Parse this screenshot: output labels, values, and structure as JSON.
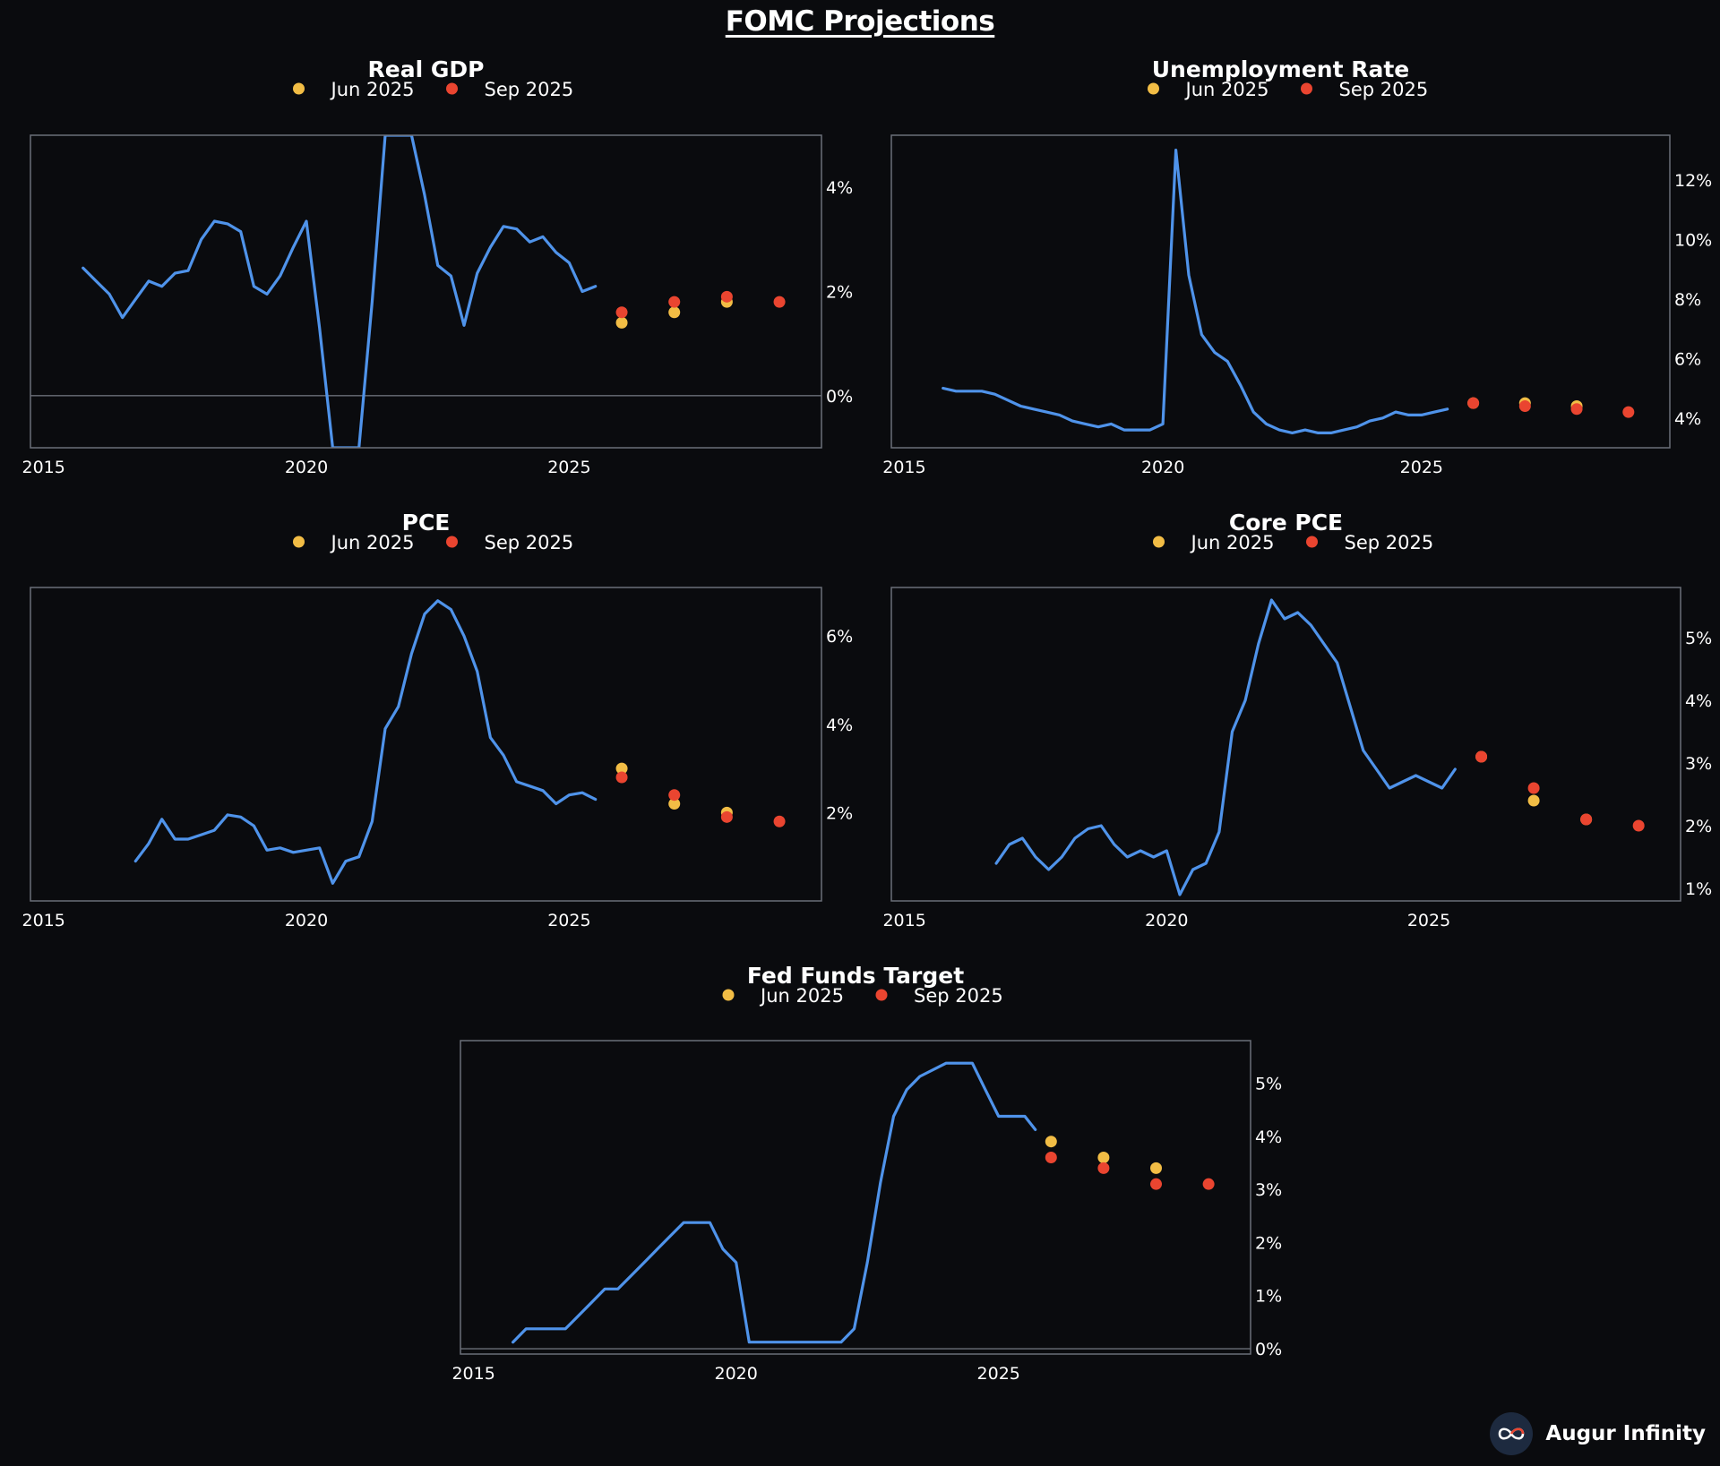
{
  "title": "FOMC Projections",
  "brand": {
    "name": "Augur Infinity",
    "icon": "infinity-logo-icon"
  },
  "colors": {
    "background": "#0a0b0e",
    "history": "#4f93ea",
    "jun": "#f2bd45",
    "sep": "#ea4530",
    "frame": "#6b6f78",
    "zero_line": "#6b6f78"
  },
  "legend": {
    "jun_label": "Jun 2025",
    "sep_label": "Sep 2025"
  },
  "chart_data": [
    {
      "id": "gdp",
      "type": "line",
      "title": "Real GDP",
      "xlim": [
        2014.75,
        2029.8
      ],
      "ylim": [
        -1.0,
        5.0
      ],
      "xticks": [
        2015,
        2020,
        2025
      ],
      "yticks": [
        0,
        2,
        4
      ],
      "zero_line": true,
      "history": {
        "x": [
          2015.75,
          2016.0,
          2016.25,
          2016.5,
          2016.75,
          2017.0,
          2017.25,
          2017.5,
          2017.75,
          2018.0,
          2018.25,
          2018.5,
          2018.75,
          2019.0,
          2019.25,
          2019.5,
          2019.75,
          2020.0,
          2020.25,
          2020.5,
          2021.0,
          2021.25,
          2021.5,
          2021.75,
          2022.0,
          2022.25,
          2022.5,
          2022.75,
          2023.0,
          2023.25,
          2023.5,
          2023.75,
          2024.0,
          2024.25,
          2024.5,
          2024.75,
          2025.0,
          2025.25,
          2025.5
        ],
        "y": [
          2.45,
          2.2,
          1.95,
          1.5,
          1.85,
          2.2,
          2.1,
          2.35,
          2.4,
          3.0,
          3.35,
          3.3,
          3.15,
          2.1,
          1.95,
          2.3,
          2.85,
          3.35,
          1.3,
          -1.0,
          -1.0,
          1.8,
          5.0,
          5.0,
          5.0,
          3.85,
          2.5,
          2.3,
          1.35,
          2.35,
          2.85,
          3.25,
          3.2,
          2.95,
          3.05,
          2.75,
          2.55,
          2.0,
          2.1
        ]
      },
      "jun": {
        "x": [
          2026,
          2027,
          2028
        ],
        "y": [
          1.4,
          1.6,
          1.8
        ]
      },
      "sep": {
        "x": [
          2026,
          2027,
          2028,
          2029
        ],
        "y": [
          1.6,
          1.8,
          1.9,
          1.8
        ]
      }
    },
    {
      "id": "unemployment",
      "type": "line",
      "title": "Unemployment Rate",
      "xlim": [
        2014.75,
        2029.8
      ],
      "ylim": [
        3.0,
        13.5
      ],
      "xticks": [
        2015,
        2020,
        2025
      ],
      "yticks": [
        4,
        6,
        8,
        10,
        12
      ],
      "zero_line": false,
      "history": {
        "x": [
          2015.75,
          2016.0,
          2016.25,
          2016.5,
          2016.75,
          2017.0,
          2017.25,
          2017.5,
          2017.75,
          2018.0,
          2018.25,
          2018.5,
          2018.75,
          2019.0,
          2019.25,
          2019.5,
          2019.75,
          2020.0,
          2020.25,
          2020.5,
          2020.75,
          2021.0,
          2021.25,
          2021.5,
          2021.75,
          2022.0,
          2022.25,
          2022.5,
          2022.75,
          2023.0,
          2023.25,
          2023.5,
          2023.75,
          2024.0,
          2024.25,
          2024.5,
          2024.75,
          2025.0,
          2025.25,
          2025.5
        ],
        "y": [
          5.0,
          4.9,
          4.9,
          4.9,
          4.8,
          4.6,
          4.4,
          4.3,
          4.2,
          4.1,
          3.9,
          3.8,
          3.7,
          3.8,
          3.6,
          3.6,
          3.6,
          3.8,
          13.0,
          8.8,
          6.8,
          6.2,
          5.9,
          5.1,
          4.2,
          3.8,
          3.6,
          3.5,
          3.6,
          3.5,
          3.5,
          3.6,
          3.7,
          3.9,
          4.0,
          4.2,
          4.1,
          4.1,
          4.2,
          4.3
        ]
      },
      "jun": {
        "x": [
          2026,
          2027,
          2028
        ],
        "y": [
          4.5,
          4.5,
          4.4
        ]
      },
      "sep": {
        "x": [
          2026,
          2027,
          2028,
          2029
        ],
        "y": [
          4.5,
          4.4,
          4.3,
          4.2
        ]
      }
    },
    {
      "id": "pce",
      "type": "line",
      "title": "PCE",
      "xlim": [
        2014.75,
        2029.8
      ],
      "ylim": [
        0.0,
        7.1
      ],
      "xticks": [
        2015,
        2020,
        2025
      ],
      "yticks": [
        2,
        4,
        6
      ],
      "zero_line": false,
      "history": {
        "x": [
          2016.75,
          2017.0,
          2017.25,
          2017.5,
          2017.75,
          2018.0,
          2018.25,
          2018.5,
          2018.75,
          2019.0,
          2019.25,
          2019.5,
          2019.75,
          2020.0,
          2020.25,
          2020.5,
          2020.75,
          2021.0,
          2021.25,
          2021.5,
          2021.75,
          2022.0,
          2022.25,
          2022.5,
          2022.75,
          2023.0,
          2023.25,
          2023.5,
          2023.75,
          2024.0,
          2024.25,
          2024.5,
          2024.75,
          2025.0,
          2025.25,
          2025.5
        ],
        "y": [
          0.9,
          1.3,
          1.85,
          1.4,
          1.4,
          1.5,
          1.6,
          1.95,
          1.9,
          1.7,
          1.15,
          1.2,
          1.1,
          1.15,
          1.2,
          0.4,
          0.9,
          1.0,
          1.8,
          3.9,
          4.4,
          5.6,
          6.5,
          6.8,
          6.6,
          6.0,
          5.2,
          3.7,
          3.3,
          2.7,
          2.6,
          2.5,
          2.2,
          2.4,
          2.45,
          2.3
        ]
      },
      "jun": {
        "x": [
          2026,
          2027,
          2028
        ],
        "y": [
          3.0,
          2.2,
          2.0
        ]
      },
      "sep": {
        "x": [
          2026,
          2027,
          2028,
          2029
        ],
        "y": [
          2.8,
          2.4,
          1.9,
          1.8
        ]
      }
    },
    {
      "id": "core-pce",
      "type": "line",
      "title": "Core PCE",
      "xlim": [
        2014.75,
        2029.8
      ],
      "ylim": [
        0.8,
        5.8
      ],
      "xticks": [
        2015,
        2020,
        2025
      ],
      "yticks": [
        1,
        2,
        3,
        4,
        5
      ],
      "zero_line": false,
      "history": {
        "x": [
          2016.75,
          2017.0,
          2017.25,
          2017.5,
          2017.75,
          2018.0,
          2018.25,
          2018.5,
          2018.75,
          2019.0,
          2019.25,
          2019.5,
          2019.75,
          2020.0,
          2020.25,
          2020.5,
          2020.75,
          2021.0,
          2021.25,
          2021.5,
          2021.75,
          2022.0,
          2022.25,
          2022.5,
          2022.75,
          2023.0,
          2023.25,
          2023.5,
          2023.75,
          2024.0,
          2024.25,
          2024.5,
          2024.75,
          2025.0,
          2025.25,
          2025.5
        ],
        "y": [
          1.4,
          1.7,
          1.8,
          1.5,
          1.3,
          1.5,
          1.8,
          1.95,
          2.0,
          1.7,
          1.5,
          1.6,
          1.5,
          1.6,
          0.9,
          1.3,
          1.4,
          1.9,
          3.5,
          4.0,
          4.9,
          5.6,
          5.3,
          5.4,
          5.2,
          4.9,
          4.6,
          3.9,
          3.2,
          2.9,
          2.6,
          2.7,
          2.8,
          2.7,
          2.6,
          2.9
        ]
      },
      "jun": {
        "x": [
          2026,
          2027,
          2028
        ],
        "y": [
          3.1,
          2.4,
          2.1
        ]
      },
      "sep": {
        "x": [
          2026,
          2027,
          2028,
          2029
        ],
        "y": [
          3.1,
          2.6,
          2.1,
          2.0
        ]
      }
    },
    {
      "id": "fed-funds",
      "type": "line",
      "title": "Fed Funds Target",
      "xlim": [
        2014.75,
        2029.8
      ],
      "ylim": [
        -0.1,
        5.8
      ],
      "xticks": [
        2015,
        2020,
        2025
      ],
      "yticks": [
        0,
        1,
        2,
        3,
        4,
        5
      ],
      "zero_line": true,
      "history": {
        "x": [
          2015.75,
          2016.0,
          2016.25,
          2016.5,
          2016.75,
          2017.0,
          2017.25,
          2017.5,
          2017.75,
          2018.0,
          2018.25,
          2018.5,
          2018.75,
          2019.0,
          2019.25,
          2019.5,
          2019.75,
          2020.0,
          2020.25,
          2021.0,
          2022.0,
          2022.25,
          2022.5,
          2022.75,
          2023.0,
          2023.25,
          2023.5,
          2024.0,
          2024.5,
          2024.75,
          2025.0,
          2025.25,
          2025.5,
          2025.7
        ],
        "y": [
          0.125,
          0.375,
          0.375,
          0.375,
          0.375,
          0.625,
          0.875,
          1.125,
          1.125,
          1.375,
          1.625,
          1.875,
          2.125,
          2.375,
          2.375,
          2.375,
          1.875,
          1.625,
          0.125,
          0.125,
          0.125,
          0.375,
          1.625,
          3.125,
          4.375,
          4.875,
          5.125,
          5.375,
          5.375,
          4.875,
          4.375,
          4.375,
          4.375,
          4.125
        ]
      },
      "jun": {
        "x": [
          2026,
          2027,
          2028
        ],
        "y": [
          3.9,
          3.6,
          3.4
        ]
      },
      "sep": {
        "x": [
          2026,
          2027,
          2028,
          2029
        ],
        "y": [
          3.6,
          3.4,
          3.1,
          3.1
        ]
      }
    }
  ]
}
